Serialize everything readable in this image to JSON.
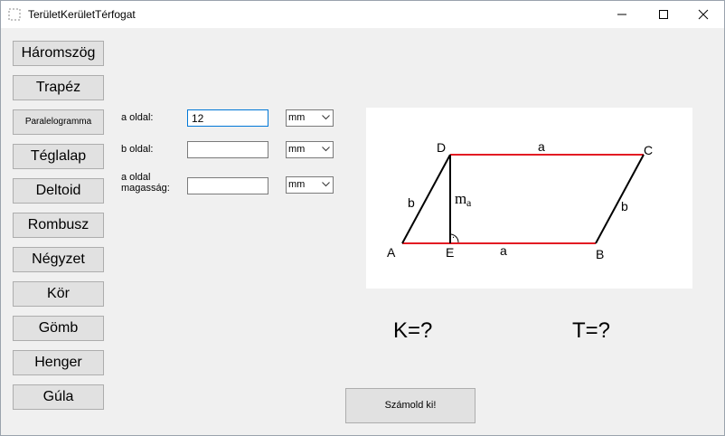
{
  "window": {
    "title": "TerületKerületTérfogat"
  },
  "sidebar": {
    "buttons": [
      {
        "label": "Háromszög"
      },
      {
        "label": "Trapéz"
      },
      {
        "label": "Paralelogramma"
      },
      {
        "label": "Téglalap"
      },
      {
        "label": "Deltoid"
      },
      {
        "label": "Rombusz"
      },
      {
        "label": "Négyzet"
      },
      {
        "label": "Kör"
      },
      {
        "label": "Gömb"
      },
      {
        "label": "Henger"
      },
      {
        "label": "Gúla"
      }
    ]
  },
  "form": {
    "a_side": {
      "label": "a oldal:",
      "value": "12",
      "unit": "mm"
    },
    "b_side": {
      "label": "b oldal:",
      "value": "",
      "unit": "mm"
    },
    "height": {
      "label_line1": "a oldal",
      "label_line2": "magasság:",
      "value": "",
      "unit": "mm"
    }
  },
  "figure": {
    "vertices": {
      "A": "A",
      "B": "B",
      "C": "C",
      "D": "D",
      "E": "E"
    },
    "edges": {
      "top": "a",
      "bottom": "a",
      "left": "b",
      "right": "b"
    },
    "height_label": "m",
    "height_sub": "a",
    "edge_color": "#e31b23",
    "right_angle_dot": "·"
  },
  "results": {
    "perimeter": "K=?",
    "area": "T=?"
  },
  "actions": {
    "calculate": "Számold ki!"
  }
}
